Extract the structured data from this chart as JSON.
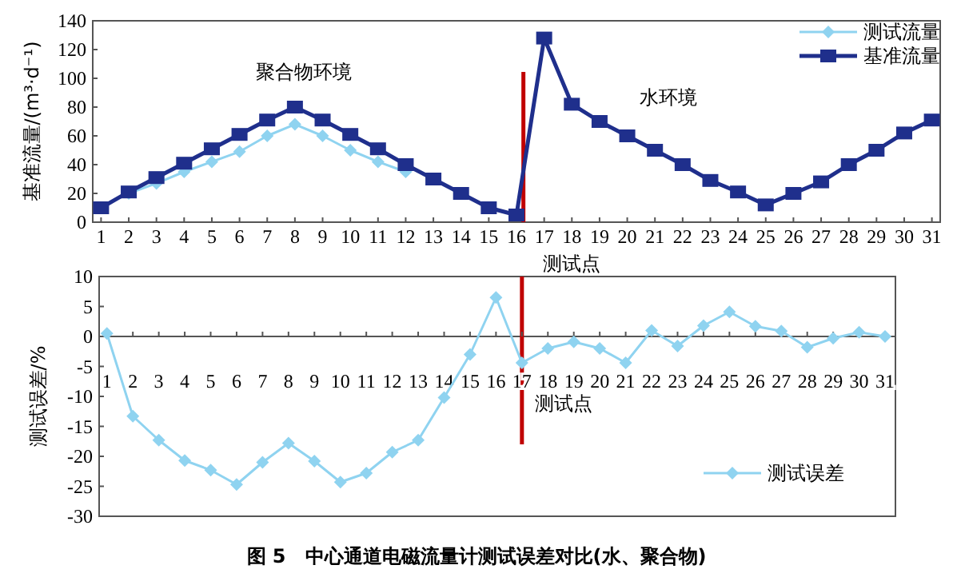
{
  "chart_data": [
    {
      "type": "line",
      "ylabel": "基准流量/(m³·d⁻¹)",
      "xlabel": "测试点",
      "x": [
        1,
        2,
        3,
        4,
        5,
        6,
        7,
        8,
        9,
        10,
        11,
        12,
        13,
        14,
        15,
        16,
        17,
        18,
        19,
        20,
        21,
        22,
        23,
        24,
        25,
        26,
        27,
        28,
        29,
        30,
        31
      ],
      "xlim": [
        0.7,
        31.3
      ],
      "xticks": [
        1,
        2,
        3,
        4,
        5,
        6,
        7,
        8,
        9,
        10,
        11,
        12,
        13,
        14,
        15,
        16,
        17,
        18,
        19,
        20,
        21,
        22,
        23,
        24,
        25,
        26,
        27,
        28,
        29,
        30,
        31
      ],
      "ylim": [
        0,
        140
      ],
      "yticks": [
        0,
        20,
        40,
        60,
        80,
        100,
        120,
        140
      ],
      "legend": "top right",
      "annotations": [
        "聚合物环境",
        "水环境"
      ],
      "series": [
        {
          "name": "测试流量",
          "color": "#8fd3f0",
          "marker": "diamond",
          "values": [
            null,
            20,
            27,
            35,
            42,
            49,
            60,
            68,
            60,
            50,
            42,
            35,
            null,
            null,
            null,
            null,
            null,
            null,
            null,
            null,
            null,
            null,
            null,
            null,
            null,
            null,
            null,
            null,
            null,
            null,
            null
          ]
        },
        {
          "name": "基准流量",
          "color": "#1f2f8c",
          "marker": "square",
          "values": [
            10,
            21,
            31,
            41,
            51,
            61,
            71,
            80,
            71,
            61,
            51,
            40,
            30,
            20,
            10,
            5,
            128,
            82,
            70,
            60,
            50,
            40,
            29,
            21,
            12,
            20,
            28,
            40,
            50,
            62,
            71
          ]
        }
      ],
      "ref_lines": [
        {
          "axis": "x",
          "value": 16.25,
          "color": "#c00000"
        }
      ]
    },
    {
      "type": "line",
      "ylabel": "测试误差/%",
      "xlabel": "测试点",
      "x": [
        1,
        2,
        3,
        4,
        5,
        6,
        7,
        8,
        9,
        10,
        11,
        12,
        13,
        14,
        15,
        16,
        17,
        18,
        19,
        20,
        21,
        22,
        23,
        24,
        25,
        26,
        27,
        28,
        29,
        30,
        31
      ],
      "xlim": [
        0.7,
        31.4
      ],
      "xticks": [
        1,
        2,
        3,
        4,
        5,
        6,
        7,
        8,
        9,
        10,
        11,
        12,
        13,
        14,
        15,
        16,
        17,
        18,
        19,
        20,
        21,
        22,
        23,
        24,
        25,
        26,
        27,
        28,
        29,
        30,
        31
      ],
      "ylim": [
        -30,
        10
      ],
      "yticks": [
        -30,
        -25,
        -20,
        -15,
        -10,
        -5,
        0,
        5,
        10
      ],
      "legend": "bottom right",
      "annotations": [
        "图 5　中心通道电磁流量计测试误差对比(水、聚合物)"
      ],
      "series": [
        {
          "name": "测试误差",
          "color": "#8fd3f0",
          "marker": "diamond",
          "values": [
            0.5,
            -13.3,
            -17.3,
            -20.7,
            -22.3,
            -24.7,
            -21,
            -17.8,
            -20.8,
            -24.3,
            -22.8,
            -19.3,
            -17.3,
            -10.2,
            -3,
            6.5,
            -4.4,
            -2,
            -0.9,
            -2,
            -4.4,
            1,
            -1.6,
            1.8,
            4.1,
            1.7,
            0.9,
            -1.8,
            -0.3,
            0.7,
            0
          ]
        }
      ],
      "ref_lines": [
        {
          "axis": "x",
          "value": 17,
          "color": "#c00000"
        }
      ]
    }
  ]
}
